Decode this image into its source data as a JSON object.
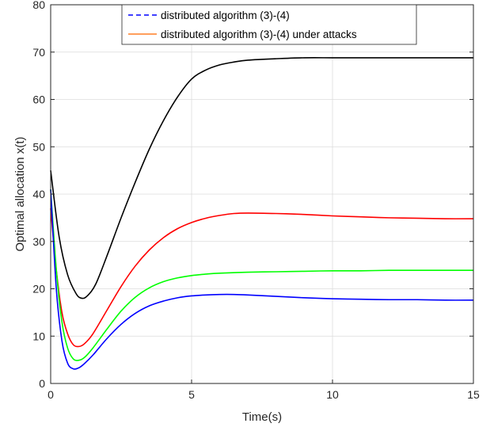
{
  "chart_data": {
    "type": "line",
    "title": "",
    "xlabel": "Time(s)",
    "ylabel": "Optimal allocation x(t)",
    "xlim": [
      0,
      15
    ],
    "ylim": [
      0,
      80
    ],
    "xticks": [
      0,
      5,
      10,
      15
    ],
    "yticks": [
      0,
      10,
      20,
      30,
      40,
      50,
      60,
      70,
      80
    ],
    "grid": true,
    "legend_position": "top-center",
    "legend": [
      {
        "label": "distributed algorithm (3)-(4)",
        "color": "#0000ff",
        "style": "dashed"
      },
      {
        "label": "distributed algorithm (3)-(4) under attacks",
        "color": "#ff7f27",
        "style": "solid"
      }
    ],
    "series": [
      {
        "color": "#000000",
        "x": [
          0,
          0.3,
          0.6,
          0.9,
          1.1,
          1.3,
          1.6,
          2.0,
          2.5,
          3.0,
          3.5,
          4.0,
          4.5,
          5.0,
          5.5,
          6.0,
          6.5,
          7.0,
          8.0,
          9.0,
          10.0,
          11.0,
          12.0,
          13.0,
          14.0,
          15.0
        ],
        "y": [
          45,
          31,
          23,
          19,
          18,
          18.5,
          21,
          27,
          35,
          42.5,
          49.5,
          55.5,
          60.5,
          64.3,
          66.2,
          67.3,
          67.9,
          68.3,
          68.6,
          68.8,
          68.8,
          68.8,
          68.8,
          68.8,
          68.8,
          68.8
        ]
      },
      {
        "color": "#ff0000",
        "x": [
          0,
          0.2,
          0.4,
          0.6,
          0.8,
          1.0,
          1.2,
          1.5,
          2.0,
          2.5,
          3.0,
          3.5,
          4.0,
          4.5,
          5.0,
          5.5,
          6.0,
          6.5,
          7.0,
          8.0,
          9.0,
          10.0,
          11.0,
          12.0,
          13.0,
          14.0,
          15.0
        ],
        "y": [
          37,
          24,
          15,
          10.5,
          8.2,
          7.8,
          8.4,
          10.5,
          15.5,
          20.5,
          24.8,
          28.2,
          30.8,
          32.7,
          34.0,
          34.9,
          35.5,
          35.9,
          36.0,
          35.9,
          35.7,
          35.4,
          35.2,
          35.0,
          34.9,
          34.8,
          34.8
        ]
      },
      {
        "color": "#00ff00",
        "x": [
          0,
          0.2,
          0.4,
          0.6,
          0.8,
          1.0,
          1.2,
          1.5,
          2.0,
          2.5,
          3.0,
          3.5,
          4.0,
          4.5,
          5.0,
          5.5,
          6.0,
          7.0,
          8.0,
          9.0,
          10.0,
          11.0,
          12.0,
          13.0,
          14.0,
          15.0
        ],
        "y": [
          41,
          24,
          13,
          7.5,
          5.2,
          4.9,
          5.5,
          7.5,
          11.5,
          15.3,
          18.2,
          20.2,
          21.5,
          22.3,
          22.8,
          23.1,
          23.3,
          23.5,
          23.6,
          23.7,
          23.8,
          23.8,
          23.9,
          23.9,
          23.9,
          23.9
        ]
      },
      {
        "color": "#0000ff",
        "x": [
          0,
          0.2,
          0.4,
          0.6,
          0.8,
          1.0,
          1.2,
          1.5,
          2.0,
          2.5,
          3.0,
          3.5,
          4.0,
          4.5,
          5.0,
          5.5,
          6.0,
          6.5,
          7.0,
          8.0,
          9.0,
          10.0,
          11.0,
          12.0,
          13.0,
          14.0,
          15.0
        ],
        "y": [
          41,
          20,
          9,
          4.3,
          3.1,
          3.3,
          4.2,
          6.0,
          9.5,
          12.5,
          14.8,
          16.4,
          17.4,
          18.1,
          18.5,
          18.7,
          18.8,
          18.8,
          18.7,
          18.4,
          18.1,
          17.9,
          17.8,
          17.7,
          17.7,
          17.6,
          17.6
        ]
      }
    ]
  }
}
